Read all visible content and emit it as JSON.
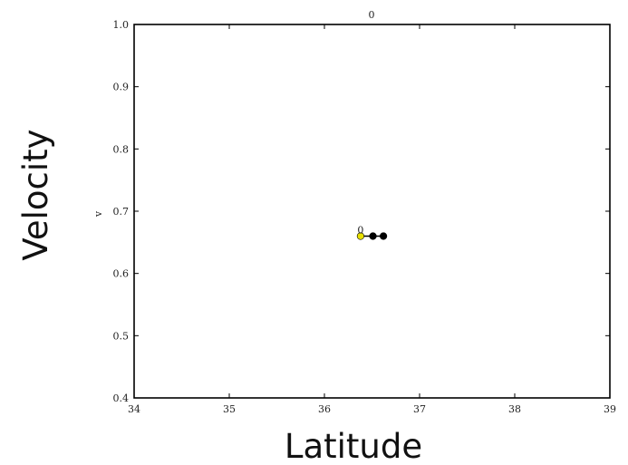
{
  "chart_data": {
    "type": "scatter",
    "title": "0",
    "xlabel": "Latitude",
    "ylabel": "Velocity",
    "inner_ylabel": "v",
    "xlim": [
      34,
      39
    ],
    "ylim": [
      0.4,
      1.0
    ],
    "x_ticks": [
      34,
      35,
      36,
      37,
      38,
      39
    ],
    "x_tick_labels": [
      "34",
      "35",
      "36",
      "37",
      "38",
      "39"
    ],
    "y_ticks": [
      0.4,
      0.5,
      0.6,
      0.7,
      0.8,
      0.9,
      1.0
    ],
    "y_tick_labels": [
      "0.4",
      "0.5",
      "0.6",
      "0.7",
      "0.8",
      "0.9",
      "1.0"
    ],
    "grid": false,
    "series": [
      {
        "points": [
          {
            "x": 36.38,
            "y": 0.66,
            "color": "#e8e000"
          },
          {
            "x": 36.51,
            "y": 0.66,
            "color": "#000000"
          },
          {
            "x": 36.62,
            "y": 0.66,
            "color": "#000000"
          }
        ],
        "line_color": "#000000"
      }
    ],
    "point_annotation": "0"
  }
}
